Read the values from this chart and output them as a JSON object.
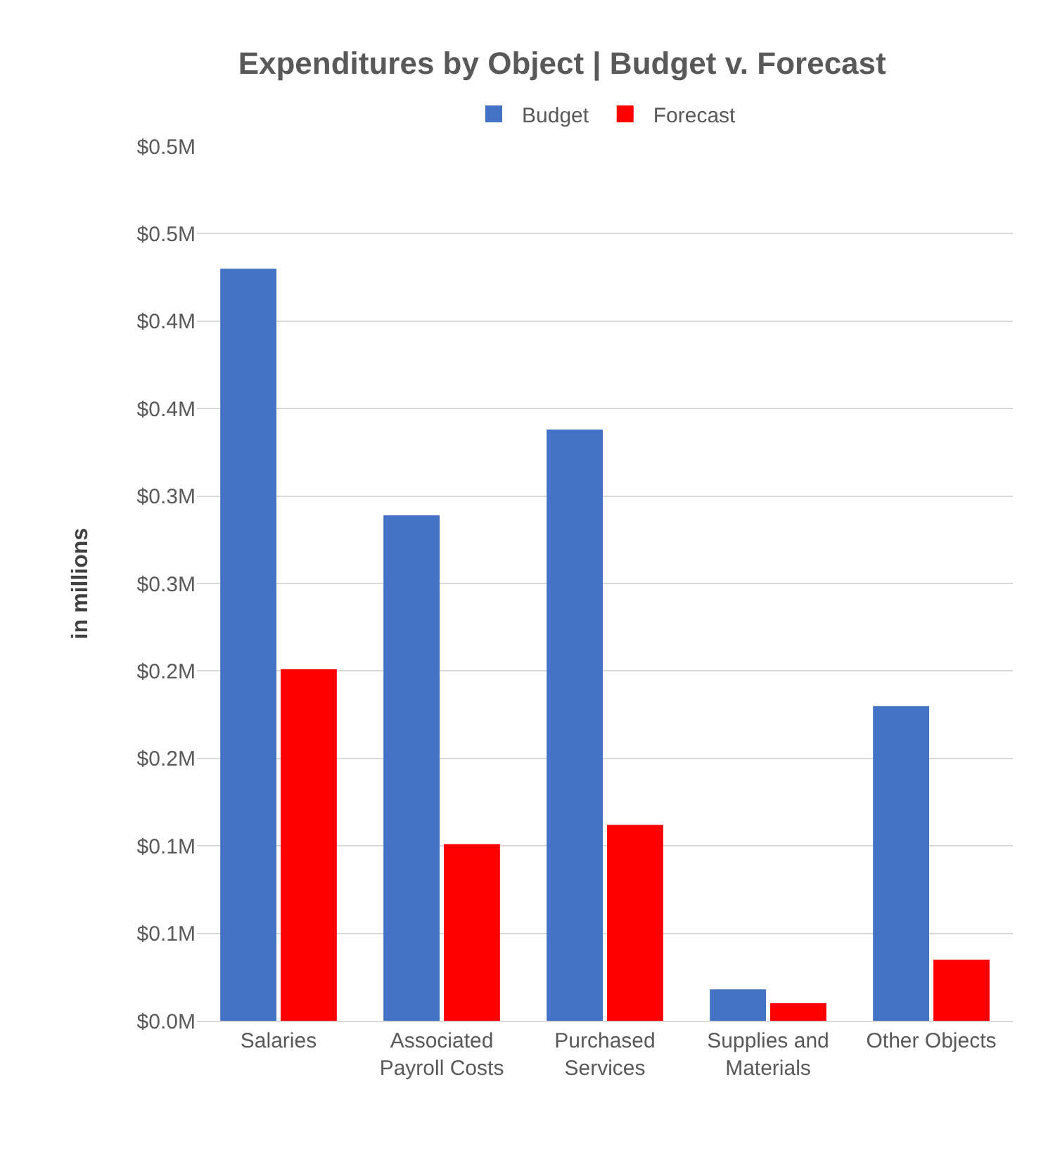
{
  "chart_data": {
    "type": "bar",
    "title": "Expenditures by Object | Budget v. Forecast",
    "ylabel": "in millions",
    "categories": [
      "Salaries",
      "Associated Payroll Costs",
      "Purchased Services",
      "Supplies and Materials",
      "Other Objects"
    ],
    "series": [
      {
        "name": "Budget",
        "color": "#4472c4",
        "values": [
          0.43,
          0.289,
          0.338,
          0.018,
          0.18
        ]
      },
      {
        "name": "Forecast",
        "color": "#ff0000",
        "values": [
          0.201,
          0.101,
          0.112,
          0.01,
          0.035
        ]
      }
    ],
    "ylim": [
      0,
      0.5
    ],
    "yticks": [
      {
        "value": 0,
        "label": "$0.0M"
      },
      {
        "value": 0.05,
        "label": "$0.1M"
      },
      {
        "value": 0.1,
        "label": "$0.1M"
      },
      {
        "value": 0.15,
        "label": "$0.2M"
      },
      {
        "value": 0.2,
        "label": "$0.2M"
      },
      {
        "value": 0.25,
        "label": "$0.3M"
      },
      {
        "value": 0.3,
        "label": "$0.3M"
      },
      {
        "value": 0.35,
        "label": "$0.4M"
      },
      {
        "value": 0.4,
        "label": "$0.4M"
      },
      {
        "value": 0.45,
        "label": "$0.5M"
      },
      {
        "value": 0.5,
        "label": "$0.5M"
      }
    ],
    "grid": "y",
    "legend": "top"
  }
}
